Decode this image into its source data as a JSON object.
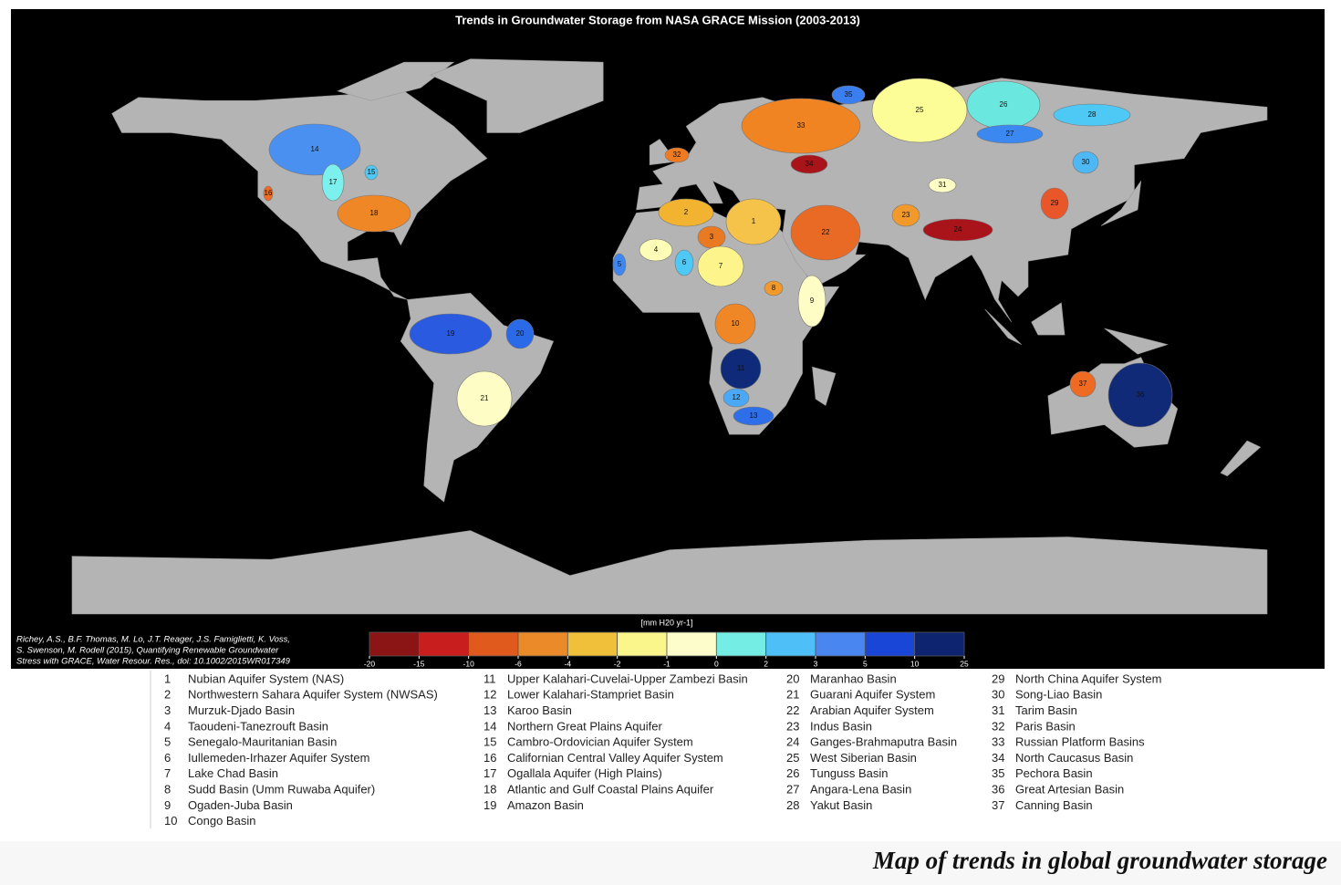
{
  "title": "Trends in Groundwater Storage from NASA GRACE Mission (2003-2013)",
  "citation": [
    "Richey, A.S., B.F. Thomas, M. Lo, J.T. Reager, J.S. Famiglietti, K. Voss,",
    "S. Swenson, M. Rodell (2015), Quantifying Renewable Groundwater",
    "Stress with GRACE, Water Resour. Res., doi: 10.1002/2015WR017349"
  ],
  "colorbar": {
    "label": "[mm H20 yr-1]",
    "ticks": [
      -20,
      -15,
      -10,
      -6,
      -4,
      -2,
      -1,
      0,
      2,
      3,
      5,
      10,
      25
    ],
    "colors": [
      "#8b1414",
      "#c81e1e",
      "#e05a1e",
      "#eb8a28",
      "#f0c03a",
      "#fbf68c",
      "#fdfdcc",
      "#74eee4",
      "#4ec0f7",
      "#4a86f0",
      "#1a46d8",
      "#0e2470"
    ]
  },
  "basins": [
    {
      "number": 1,
      "name": "Nubian Aquifer System (NAS)",
      "color": "#f5c24a"
    },
    {
      "number": 2,
      "name": "Northwestern Sahara Aquifer System (NWSAS)",
      "color": "#f2b330"
    },
    {
      "number": 3,
      "name": "Murzuk-Djado Basin",
      "color": "#e97a22"
    },
    {
      "number": 4,
      "name": "Taoudeni-Tanezrouft Basin",
      "color": "#fdfdb7"
    },
    {
      "number": 5,
      "name": "Senegalo-Mauritanian Basin",
      "color": "#3f86f0"
    },
    {
      "number": 6,
      "name": "Iullemeden-Irhazer Aquifer System",
      "color": "#4ec8f4"
    },
    {
      "number": 7,
      "name": "Lake Chad Basin",
      "color": "#fdf58c"
    },
    {
      "number": 8,
      "name": "Sudd Basin (Umm Ruwaba Aquifer)",
      "color": "#f19a2b"
    },
    {
      "number": 9,
      "name": "Ogaden-Juba Basin",
      "color": "#fdfdc5"
    },
    {
      "number": 10,
      "name": "Congo Basin",
      "color": "#ef8727"
    },
    {
      "number": 11,
      "name": "Upper Kalahari-Cuvelai-Upper Zambezi Basin",
      "color": "#0e2a78"
    },
    {
      "number": 12,
      "name": "Lower Kalahari-Stampriet Basin",
      "color": "#4aa8f4"
    },
    {
      "number": 13,
      "name": "Karoo Basin",
      "color": "#2e6ee8"
    },
    {
      "number": 14,
      "name": "Northern Great Plains Aquifer",
      "color": "#4a90f0"
    },
    {
      "number": 15,
      "name": "Cambro-Ordovician Aquifer System",
      "color": "#4ec8f4"
    },
    {
      "number": 16,
      "name": "Californian Central Valley Aquifer System",
      "color": "#ef6a22"
    },
    {
      "number": 17,
      "name": "Ogallala Aquifer (High Plains)",
      "color": "#7cf0ec"
    },
    {
      "number": 18,
      "name": "Atlantic and Gulf Coastal Plains Aquifer",
      "color": "#ef8727"
    },
    {
      "number": 19,
      "name": "Amazon Basin",
      "color": "#2a5ae0"
    },
    {
      "number": 20,
      "name": "Maranhao Basin",
      "color": "#2a6ae8"
    },
    {
      "number": 21,
      "name": "Guarani Aquifer System",
      "color": "#fdfdc5"
    },
    {
      "number": 22,
      "name": "Arabian Aquifer System",
      "color": "#e96a25"
    },
    {
      "number": 23,
      "name": "Indus Basin",
      "color": "#f19a2b"
    },
    {
      "number": 24,
      "name": "Ganges-Brahmaputra Basin",
      "color": "#a9141a"
    },
    {
      "number": 25,
      "name": "West Siberian Basin",
      "color": "#fdfd98"
    },
    {
      "number": 26,
      "name": "Tunguss Basin",
      "color": "#6ae8e0"
    },
    {
      "number": 27,
      "name": "Angara-Lena Basin",
      "color": "#3a88f0"
    },
    {
      "number": 28,
      "name": "Yakut Basin",
      "color": "#4ec8f4"
    },
    {
      "number": 29,
      "name": "North China Aquifer System",
      "color": "#e9562a"
    },
    {
      "number": 30,
      "name": "Song-Liao Basin",
      "color": "#4eb8f4"
    },
    {
      "number": 31,
      "name": "Tarim Basin",
      "color": "#fdfdc5"
    },
    {
      "number": 32,
      "name": "Paris Basin",
      "color": "#ef7a22"
    },
    {
      "number": 33,
      "name": "Russian Platform Basins",
      "color": "#f08322"
    },
    {
      "number": 34,
      "name": "North Caucasus Basin",
      "color": "#a9141a"
    },
    {
      "number": 35,
      "name": "Pechora Basin",
      "color": "#3a7ef0"
    },
    {
      "number": 36,
      "name": "Great Artesian Basin",
      "color": "#102a78"
    },
    {
      "number": 37,
      "name": "Canning Basin",
      "color": "#ef6a22"
    }
  ],
  "caption": "Map of trends in global groundwater storage"
}
